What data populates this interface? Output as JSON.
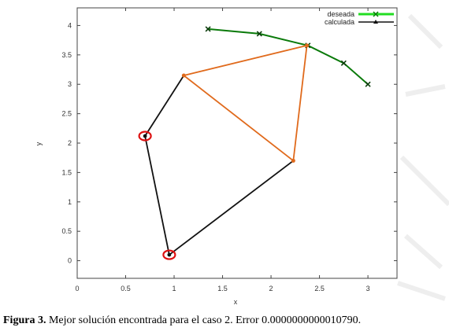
{
  "chart_data": {
    "type": "line",
    "title": "",
    "xlabel": "x",
    "ylabel": "y",
    "xlim": [
      0,
      3.3
    ],
    "ylim": [
      -0.3,
      4.3
    ],
    "xticks": [
      "0",
      "0.5",
      "1",
      "1.5",
      "2",
      "2.5",
      "3"
    ],
    "xtick_values": [
      0,
      0.5,
      1,
      1.5,
      2,
      2.5,
      3
    ],
    "yticks": [
      "0",
      "0.5",
      "1",
      "1.5",
      "2",
      "2.5",
      "3",
      "3.5",
      "4"
    ],
    "ytick_values": [
      0,
      0.5,
      1,
      1.5,
      2,
      2.5,
      3,
      3.5,
      4
    ],
    "grid": false,
    "legend_position": "top-right",
    "series": [
      {
        "name": "deseada",
        "color": "#0a7a0a",
        "legend_color": "#22dd22",
        "marker": "x",
        "x": [
          1.35,
          1.88,
          2.38,
          2.75,
          3.0
        ],
        "y": [
          3.94,
          3.86,
          3.66,
          3.36,
          3.0
        ]
      },
      {
        "name": "calculada",
        "color": "#111111",
        "marker": "triangle",
        "segments": [
          {
            "x": [
              0.7,
              1.1
            ],
            "y": [
              2.12,
              3.15
            ]
          },
          {
            "x": [
              0.7,
              0.95
            ],
            "y": [
              2.12,
              0.1
            ]
          },
          {
            "x": [
              0.95,
              2.23
            ],
            "y": [
              0.1,
              1.7
            ]
          }
        ]
      },
      {
        "name": "",
        "color": "#e06a1c",
        "marker": "dot",
        "segments": [
          {
            "x": [
              1.1,
              2.37
            ],
            "y": [
              3.15,
              3.66
            ]
          },
          {
            "x": [
              1.1,
              2.23
            ],
            "y": [
              3.15,
              1.7
            ]
          },
          {
            "x": [
              2.23,
              2.37
            ],
            "y": [
              1.7,
              3.66
            ]
          }
        ]
      }
    ],
    "fixed_joints": [
      {
        "x": 0.7,
        "y": 2.12,
        "color": "#dd1111"
      },
      {
        "x": 0.95,
        "y": 0.1,
        "color": "#dd1111"
      }
    ]
  },
  "caption": {
    "label": "Figura 3.",
    "text": " Mejor solución encontrada para el caso 2. Error 0.0000000000010790."
  }
}
